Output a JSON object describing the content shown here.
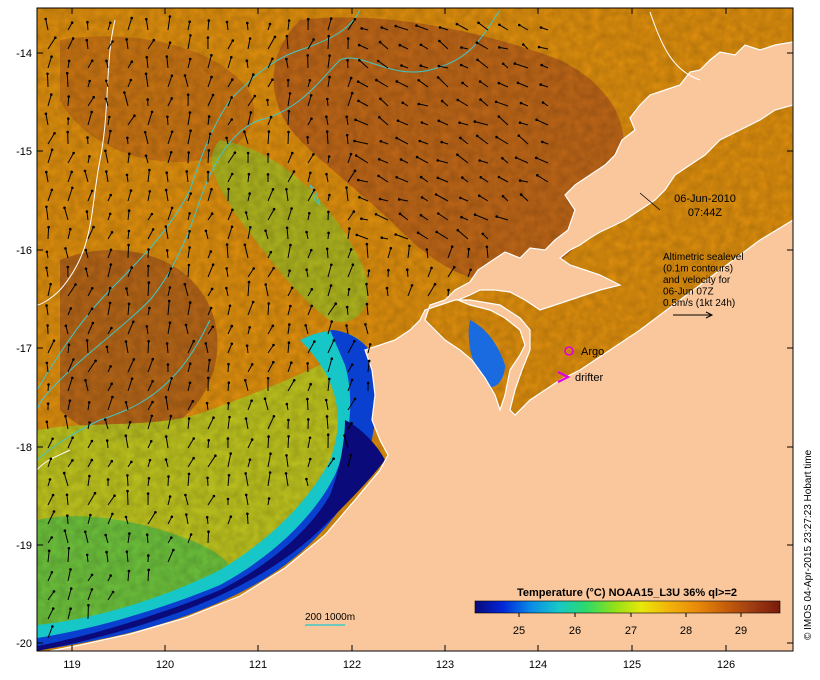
{
  "map": {
    "x_ticks": [
      "119",
      "120",
      "121",
      "122",
      "123",
      "124",
      "125",
      "126"
    ],
    "y_ticks": [
      "-14",
      "-15",
      "-16",
      "-17",
      "-18",
      "-19",
      "-20"
    ],
    "date": "06-Jun-2010",
    "time": "07:44Z",
    "info_lines": [
      "Altimetric sealevel",
      "(0.1m contours)",
      "and velocity for",
      "06-Jun 07Z",
      "0.5m/s (1kt 24h)"
    ],
    "argo_label": "Argo",
    "drifter_label": "drifter",
    "bathymetry_label": "200 1000m",
    "colorbar_title": "Temperature (°C) NOAA15_L3U 36% ql>=2",
    "colorbar_ticks": [
      "25",
      "26",
      "27",
      "28",
      "29"
    ],
    "credit": "© IMOS 04-Apr-2015 23:27:23 Hobart time",
    "colors": {
      "land": "#f9c79b",
      "argo": "#e000e0",
      "drifter": "#e000e0",
      "bathymetry": "#40c8c8",
      "sealevel_contour": "#ffffff",
      "coast": "#ffffff",
      "arrow": "#000000"
    },
    "colorbar_stops": [
      "#0a0a7a",
      "#0026d8",
      "#0a8ae6",
      "#17c7c7",
      "#2bd96b",
      "#8ee01a",
      "#e8e80a",
      "#f2b30a",
      "#e88a0a",
      "#c8600a",
      "#9e3c14",
      "#7a1a0a"
    ]
  }
}
